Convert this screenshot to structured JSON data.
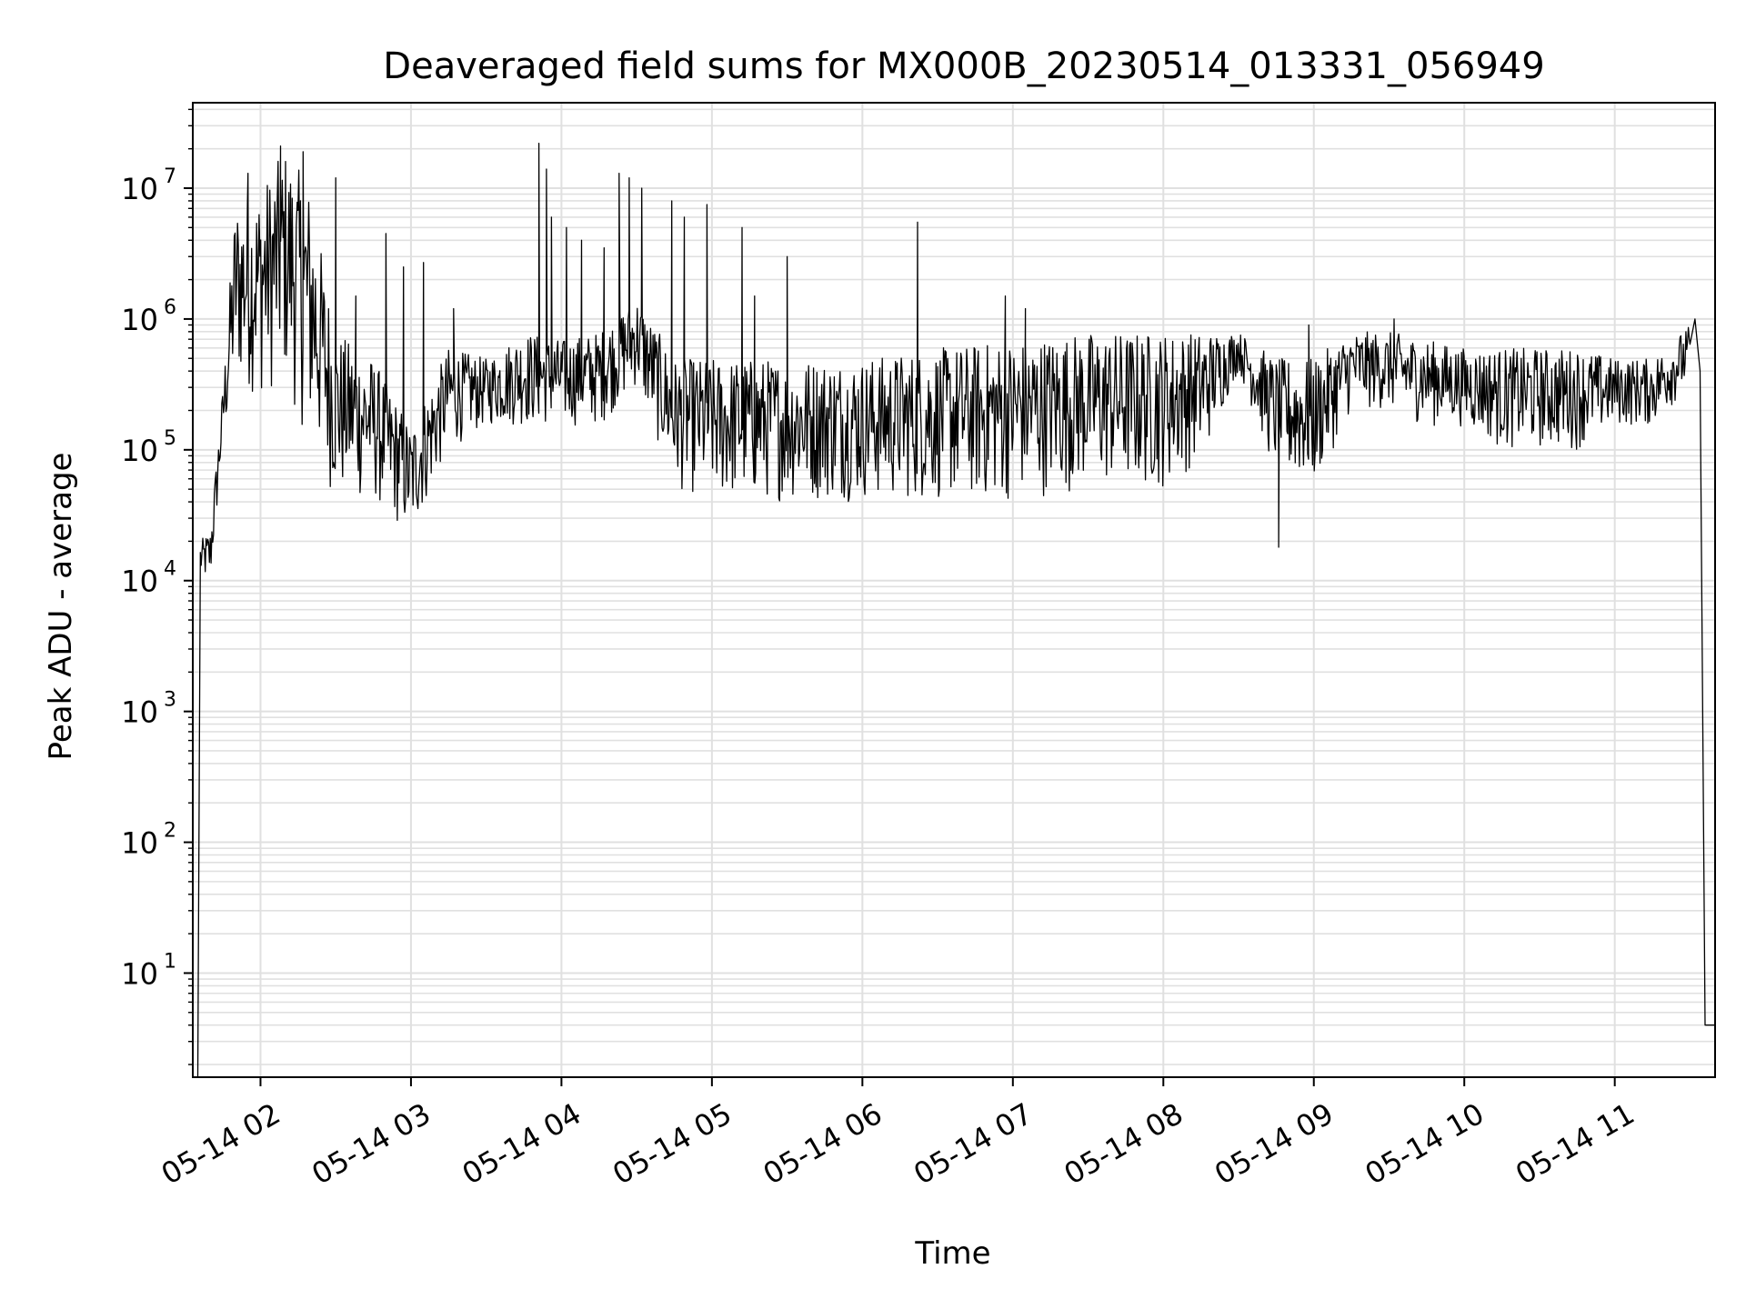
{
  "chart_data": {
    "type": "line",
    "title": "Deaveraged field sums for MX000B_20230514_013331_056949",
    "xlabel": "Time",
    "ylabel": "Peak ADU - average",
    "yscale": "log",
    "grid": true,
    "line_color": "#000000",
    "grid_color": "#e0e0e0",
    "xlim": [
      "2023-05-14 01:33",
      "2023-05-14 11:40"
    ],
    "ylim": [
      1.6,
      45000000
    ],
    "x_ticks": [
      {
        "label": "05-14 02",
        "value": "2023-05-14 02:00"
      },
      {
        "label": "05-14 03",
        "value": "2023-05-14 03:00"
      },
      {
        "label": "05-14 04",
        "value": "2023-05-14 04:00"
      },
      {
        "label": "05-14 05",
        "value": "2023-05-14 05:00"
      },
      {
        "label": "05-14 06",
        "value": "2023-05-14 06:00"
      },
      {
        "label": "05-14 07",
        "value": "2023-05-14 07:00"
      },
      {
        "label": "05-14 08",
        "value": "2023-05-14 08:00"
      },
      {
        "label": "05-14 09",
        "value": "2023-05-14 09:00"
      },
      {
        "label": "05-14 10",
        "value": "2023-05-14 10:00"
      },
      {
        "label": "05-14 11",
        "value": "2023-05-14 11:00"
      }
    ],
    "y_ticks": [
      {
        "base": "10",
        "exp": "1",
        "value": 10
      },
      {
        "base": "10",
        "exp": "2",
        "value": 100
      },
      {
        "base": "10",
        "exp": "3",
        "value": 1000
      },
      {
        "base": "10",
        "exp": "4",
        "value": 10000
      },
      {
        "base": "10",
        "exp": "5",
        "value": 100000
      },
      {
        "base": "10",
        "exp": "6",
        "value": 1000000
      },
      {
        "base": "10",
        "exp": "7",
        "value": 10000000
      }
    ],
    "series": [
      {
        "band": [
          {
            "t": "2023-05-14 01:35",
            "lo": 1.6,
            "hi": 1.6
          },
          {
            "t": "2023-05-14 01:36",
            "lo": 10000,
            "hi": 20000
          },
          {
            "t": "2023-05-14 01:40",
            "lo": 9000,
            "hi": 25000
          },
          {
            "t": "2023-05-14 01:45",
            "lo": 100000,
            "hi": 300000
          },
          {
            "t": "2023-05-14 01:50",
            "lo": 300000,
            "hi": 8000000
          },
          {
            "t": "2023-05-14 02:00",
            "lo": 250000,
            "hi": 10000000
          },
          {
            "t": "2023-05-14 02:10",
            "lo": 300000,
            "hi": 20000000
          },
          {
            "t": "2023-05-14 02:20",
            "lo": 100000,
            "hi": 10000000
          },
          {
            "t": "2023-05-14 02:30",
            "lo": 40000,
            "hi": 800000
          },
          {
            "t": "2023-05-14 02:45",
            "lo": 40000,
            "hi": 500000
          },
          {
            "t": "2023-05-14 03:00",
            "lo": 20000,
            "hi": 150000
          },
          {
            "t": "2023-05-14 03:15",
            "lo": 100000,
            "hi": 600000
          },
          {
            "t": "2023-05-14 03:30",
            "lo": 150000,
            "hi": 500000
          },
          {
            "t": "2023-05-14 03:45",
            "lo": 150000,
            "hi": 800000
          },
          {
            "t": "2023-05-14 04:00",
            "lo": 150000,
            "hi": 700000
          },
          {
            "t": "2023-05-14 04:15",
            "lo": 150000,
            "hi": 800000
          },
          {
            "t": "2023-05-14 04:30",
            "lo": 300000,
            "hi": 1500000
          },
          {
            "t": "2023-05-14 04:45",
            "lo": 50000,
            "hi": 500000
          },
          {
            "t": "2023-05-14 05:00",
            "lo": 40000,
            "hi": 500000
          },
          {
            "t": "2023-05-14 05:30",
            "lo": 40000,
            "hi": 500000
          },
          {
            "t": "2023-05-14 06:00",
            "lo": 40000,
            "hi": 500000
          },
          {
            "t": "2023-05-14 06:30",
            "lo": 40000,
            "hi": 600000
          },
          {
            "t": "2023-05-14 07:00",
            "lo": 40000,
            "hi": 700000
          },
          {
            "t": "2023-05-14 07:30",
            "lo": 50000,
            "hi": 800000
          },
          {
            "t": "2023-05-14 08:00",
            "lo": 50000,
            "hi": 800000
          },
          {
            "t": "2023-05-14 08:15",
            "lo": 80000,
            "hi": 800000
          },
          {
            "t": "2023-05-14 08:30",
            "lo": 400000,
            "hi": 800000
          },
          {
            "t": "2023-05-14 08:45",
            "lo": 60000,
            "hi": 500000
          },
          {
            "t": "2023-05-14 09:00",
            "lo": 50000,
            "hi": 500000
          },
          {
            "t": "2023-05-14 09:15",
            "lo": 200000,
            "hi": 800000
          },
          {
            "t": "2023-05-14 09:30",
            "lo": 200000,
            "hi": 800000
          },
          {
            "t": "2023-05-14 09:45",
            "lo": 150000,
            "hi": 700000
          },
          {
            "t": "2023-05-14 10:00",
            "lo": 150000,
            "hi": 600000
          },
          {
            "t": "2023-05-14 10:15",
            "lo": 100000,
            "hi": 600000
          },
          {
            "t": "2023-05-14 10:30",
            "lo": 100000,
            "hi": 600000
          },
          {
            "t": "2023-05-14 10:45",
            "lo": 100000,
            "hi": 600000
          },
          {
            "t": "2023-05-14 11:00",
            "lo": 150000,
            "hi": 500000
          },
          {
            "t": "2023-05-14 11:15",
            "lo": 150000,
            "hi": 500000
          },
          {
            "t": "2023-05-14 11:30",
            "lo": 300000,
            "hi": 900000
          }
        ],
        "spikes": [
          {
            "t": "2023-05-14 01:55",
            "y": 13000000
          },
          {
            "t": "2023-05-14 02:08",
            "y": 21000000
          },
          {
            "t": "2023-05-14 02:17",
            "y": 19000000
          },
          {
            "t": "2023-05-14 02:30",
            "y": 12000000
          },
          {
            "t": "2023-05-14 02:38",
            "y": 1500000
          },
          {
            "t": "2023-05-14 02:50",
            "y": 4500000
          },
          {
            "t": "2023-05-14 02:57",
            "y": 2500000
          },
          {
            "t": "2023-05-14 03:05",
            "y": 2700000
          },
          {
            "t": "2023-05-14 03:17",
            "y": 1200000
          },
          {
            "t": "2023-05-14 03:51",
            "y": 22000000
          },
          {
            "t": "2023-05-14 03:54",
            "y": 14000000
          },
          {
            "t": "2023-05-14 03:56",
            "y": 6000000
          },
          {
            "t": "2023-05-14 04:02",
            "y": 5000000
          },
          {
            "t": "2023-05-14 04:08",
            "y": 4000000
          },
          {
            "t": "2023-05-14 04:17",
            "y": 3500000
          },
          {
            "t": "2023-05-14 04:23",
            "y": 13000000
          },
          {
            "t": "2023-05-14 04:27",
            "y": 12000000
          },
          {
            "t": "2023-05-14 04:32",
            "y": 10000000
          },
          {
            "t": "2023-05-14 04:44",
            "y": 8000000
          },
          {
            "t": "2023-05-14 04:49",
            "y": 6000000
          },
          {
            "t": "2023-05-14 04:58",
            "y": 7500000
          },
          {
            "t": "2023-05-14 05:12",
            "y": 5000000
          },
          {
            "t": "2023-05-14 05:17",
            "y": 1500000
          },
          {
            "t": "2023-05-14 05:30",
            "y": 3000000
          },
          {
            "t": "2023-05-14 06:22",
            "y": 5500000
          },
          {
            "t": "2023-05-14 06:57",
            "y": 1500000
          },
          {
            "t": "2023-05-14 07:05",
            "y": 1200000
          },
          {
            "t": "2023-05-14 08:46",
            "y": 18000
          },
          {
            "t": "2023-05-14 08:58",
            "y": 900000
          },
          {
            "t": "2023-05-14 09:32",
            "y": 1000000
          }
        ],
        "tail": [
          {
            "t": "2023-05-14 11:32",
            "y": 1000000
          },
          {
            "t": "2023-05-14 11:34",
            "y": 400000
          },
          {
            "t": "2023-05-14 11:36",
            "y": 4
          },
          {
            "t": "2023-05-14 11:40",
            "y": 4
          }
        ]
      }
    ]
  }
}
